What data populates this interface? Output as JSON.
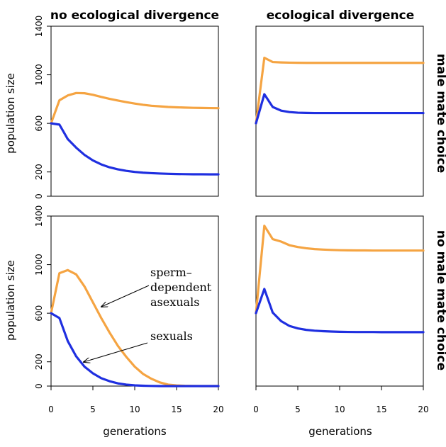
{
  "colors": {
    "asexual": "#F5A442",
    "sexual": "#1F2FE0"
  },
  "col_titles": [
    "no ecological divergence",
    "ecological divergence"
  ],
  "row_titles": [
    "male mate choice",
    "no male mate choice"
  ],
  "ylabel": "population size",
  "xlabel": "generations",
  "annotations": {
    "asexual": [
      "sperm–",
      "dependent",
      "asexuals"
    ],
    "sexual": "sexuals"
  },
  "chart_data": [
    {
      "type": "line",
      "panel": "top-left",
      "title": "no ecological divergence",
      "xlabel": "",
      "ylabel": "population size",
      "xlim": [
        0,
        20
      ],
      "ylim": [
        0,
        1400
      ],
      "xticks": [
        0,
        5,
        10,
        15,
        20
      ],
      "yticks": [
        0,
        200,
        600,
        1000,
        1400
      ],
      "show_xticks": false,
      "show_yticks": true,
      "x": [
        0,
        1,
        2,
        3,
        4,
        5,
        6,
        7,
        8,
        9,
        10,
        11,
        12,
        13,
        14,
        15,
        16,
        17,
        18,
        19,
        20
      ],
      "series": [
        {
          "name": "sperm-dependent asexuals",
          "color": "#F5A442",
          "values": [
            600,
            790,
            830,
            850,
            848,
            835,
            818,
            802,
            788,
            775,
            763,
            753,
            745,
            740,
            735,
            732,
            730,
            728,
            727,
            726,
            725
          ]
        },
        {
          "name": "sexuals",
          "color": "#1F2FE0",
          "values": [
            600,
            590,
            470,
            400,
            340,
            295,
            262,
            238,
            221,
            209,
            200,
            194,
            190,
            187,
            185,
            183,
            182,
            181,
            181,
            180,
            180
          ]
        }
      ]
    },
    {
      "type": "line",
      "panel": "top-right",
      "title": "ecological divergence",
      "xlabel": "",
      "ylabel": "",
      "xlim": [
        0,
        20
      ],
      "ylim": [
        0,
        1400
      ],
      "xticks": [
        0,
        5,
        10,
        15,
        20
      ],
      "yticks": [
        0,
        200,
        600,
        1000,
        1400
      ],
      "show_xticks": false,
      "show_yticks": false,
      "x": [
        0,
        1,
        2,
        3,
        4,
        5,
        6,
        7,
        8,
        9,
        10,
        11,
        12,
        13,
        14,
        15,
        16,
        17,
        18,
        19,
        20
      ],
      "series": [
        {
          "name": "sperm-dependent asexuals",
          "color": "#F5A442",
          "values": [
            600,
            1140,
            1105,
            1102,
            1100,
            1099,
            1098,
            1098,
            1098,
            1098,
            1098,
            1098,
            1098,
            1098,
            1098,
            1098,
            1098,
            1098,
            1098,
            1098,
            1098
          ]
        },
        {
          "name": "sexuals",
          "color": "#1F2FE0",
          "values": [
            600,
            840,
            735,
            705,
            693,
            688,
            686,
            685,
            685,
            685,
            685,
            685,
            685,
            685,
            685,
            685,
            685,
            685,
            685,
            685,
            685
          ]
        }
      ]
    },
    {
      "type": "line",
      "panel": "bottom-left",
      "title": "",
      "xlabel": "generations",
      "ylabel": "population size",
      "xlim": [
        0,
        20
      ],
      "ylim": [
        0,
        1400
      ],
      "xticks": [
        0,
        5,
        10,
        15,
        20
      ],
      "yticks": [
        0,
        200,
        600,
        1000,
        1400
      ],
      "show_xticks": true,
      "show_yticks": true,
      "x": [
        0,
        1,
        2,
        3,
        4,
        5,
        6,
        7,
        8,
        9,
        10,
        11,
        12,
        13,
        14,
        15,
        16,
        17,
        18,
        19,
        20
      ],
      "series": [
        {
          "name": "sperm-dependent asexuals",
          "color": "#F5A442",
          "values": [
            600,
            930,
            955,
            920,
            820,
            690,
            560,
            440,
            330,
            240,
            160,
            100,
            60,
            30,
            12,
            5,
            2,
            1,
            0,
            0,
            0
          ]
        },
        {
          "name": "sexuals",
          "color": "#1F2FE0",
          "values": [
            600,
            560,
            370,
            245,
            160,
            105,
            65,
            40,
            22,
            12,
            6,
            3,
            1,
            0,
            0,
            0,
            0,
            0,
            0,
            0,
            0
          ]
        }
      ]
    },
    {
      "type": "line",
      "panel": "bottom-right",
      "title": "",
      "xlabel": "generations",
      "ylabel": "",
      "xlim": [
        0,
        20
      ],
      "ylim": [
        0,
        1400
      ],
      "xticks": [
        0,
        5,
        10,
        15,
        20
      ],
      "yticks": [
        0,
        200,
        600,
        1000,
        1400
      ],
      "show_xticks": true,
      "show_yticks": false,
      "x": [
        0,
        1,
        2,
        3,
        4,
        5,
        6,
        7,
        8,
        9,
        10,
        11,
        12,
        13,
        14,
        15,
        16,
        17,
        18,
        19,
        20
      ],
      "series": [
        {
          "name": "sperm-dependent asexuals",
          "color": "#F5A442",
          "values": [
            600,
            1320,
            1210,
            1190,
            1160,
            1145,
            1135,
            1128,
            1124,
            1121,
            1119,
            1118,
            1117,
            1117,
            1116,
            1116,
            1116,
            1116,
            1116,
            1116,
            1116
          ]
        },
        {
          "name": "sexuals",
          "color": "#1F2FE0",
          "values": [
            600,
            800,
            605,
            535,
            495,
            475,
            463,
            456,
            452,
            449,
            447,
            446,
            445,
            445,
            445,
            444,
            444,
            444,
            444,
            444,
            444
          ]
        }
      ]
    }
  ]
}
